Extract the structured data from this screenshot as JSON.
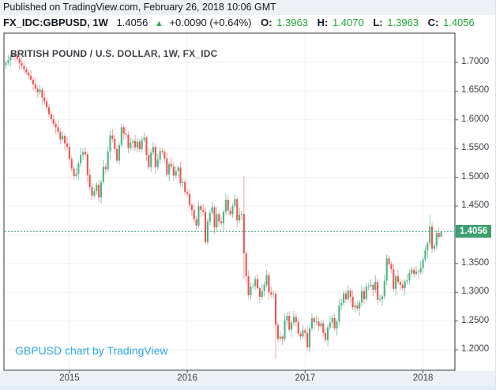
{
  "header": {
    "published_line": "Published on TradingView.com, February 26, 2018 10:06 GMT",
    "symbol_line": {
      "symbol": "FX_IDC:GBPUSD, 1W",
      "last_price": "1.4056",
      "arrow": "▲",
      "change": "+0.0090 (+0.64%)",
      "open_label": "O:",
      "open_value": "1.3963",
      "high_label": "H:",
      "high_value": "1.4070",
      "low_label": "L:",
      "low_value": "1.3963",
      "close_label": "C:",
      "close_value": "1.4056"
    }
  },
  "chart_data": {
    "type": "candlestick",
    "title": "BRITISH POUND / U.S. DOLLAR, 1W, FX_IDC",
    "watermark": "GBPUSD chart by TradingView",
    "symbol": "GBPUSD",
    "timeframe": "1W",
    "grid": true,
    "current_price": 1.4056,
    "current_price_label": "1.4056",
    "ylim": [
      1.16428,
      1.75082
    ],
    "y_ticks": [
      {
        "value": 1.7,
        "label": "1.7000"
      },
      {
        "value": 1.65,
        "label": "1.6500"
      },
      {
        "value": 1.6,
        "label": "1.6000"
      },
      {
        "value": 1.55,
        "label": "1.5500"
      },
      {
        "value": 1.5,
        "label": "1.5000"
      },
      {
        "value": 1.45,
        "label": "1.4500"
      },
      {
        "value": 1.4,
        "label": "1.4000"
      },
      {
        "value": 1.35,
        "label": "1.3500"
      },
      {
        "value": 1.3,
        "label": "1.3000"
      },
      {
        "value": 1.25,
        "label": "1.2500"
      },
      {
        "value": 1.2,
        "label": "1.2000"
      }
    ],
    "x_ticks": [
      {
        "label": "2015",
        "week_index": 28
      },
      {
        "label": "2016",
        "week_index": 80
      },
      {
        "label": "2017",
        "week_index": 132
      },
      {
        "label": "2018",
        "week_index": 184
      }
    ],
    "first_open": 1.695,
    "weekly_closes": [
      1.699,
      1.7035,
      1.71,
      1.7145,
      1.711,
      1.706,
      1.6985,
      1.694,
      1.688,
      1.6825,
      1.677,
      1.67,
      1.662,
      1.654,
      1.648,
      1.6525,
      1.639,
      1.632,
      1.622,
      1.61,
      1.601,
      1.593,
      1.587,
      1.579,
      1.566,
      1.572,
      1.559,
      1.553,
      1.532,
      1.515,
      1.502,
      1.506,
      1.524,
      1.539,
      1.544,
      1.54,
      1.504,
      1.483,
      1.468,
      1.476,
      1.487,
      1.465,
      1.492,
      1.518,
      1.514,
      1.545,
      1.573,
      1.567,
      1.549,
      1.529,
      1.556,
      1.587,
      1.576,
      1.574,
      1.551,
      1.56,
      1.563,
      1.552,
      1.562,
      1.549,
      1.565,
      1.569,
      1.539,
      1.518,
      1.543,
      1.553,
      1.518,
      1.531,
      1.546,
      1.544,
      1.533,
      1.505,
      1.523,
      1.519,
      1.503,
      1.511,
      1.517,
      1.49,
      1.492,
      1.474,
      1.471,
      1.452,
      1.443,
      1.427,
      1.416,
      1.45,
      1.443,
      1.44,
      1.387,
      1.423,
      1.438,
      1.448,
      1.413,
      1.436,
      1.423,
      1.42,
      1.44,
      1.461,
      1.442,
      1.436,
      1.45,
      1.462,
      1.425,
      1.435,
      1.436,
      1.3679,
      1.328,
      1.295,
      1.31,
      1.311,
      1.323,
      1.307,
      1.292,
      1.302,
      1.313,
      1.33,
      1.3,
      1.296,
      1.297,
      1.2434,
      1.219,
      1.223,
      1.219,
      1.251,
      1.259,
      1.235,
      1.247,
      1.257,
      1.248,
      1.228,
      1.223,
      1.234,
      1.229,
      1.204,
      1.237,
      1.255,
      1.248,
      1.249,
      1.241,
      1.246,
      1.229,
      1.217,
      1.239,
      1.247,
      1.255,
      1.237,
      1.249,
      1.277,
      1.281,
      1.298,
      1.288,
      1.303,
      1.292,
      1.274,
      1.277,
      1.272,
      1.282,
      1.302,
      1.288,
      1.31,
      1.311,
      1.313,
      1.304,
      1.318,
      1.287,
      1.288,
      1.293,
      1.32,
      1.359,
      1.349,
      1.34,
      1.306,
      1.328,
      1.318,
      1.313,
      1.307,
      1.319,
      1.321,
      1.333,
      1.339,
      1.332,
      1.336,
      1.335,
      1.342,
      1.357,
      1.373,
      1.385,
      1.4145,
      1.376,
      1.381,
      1.403,
      1.3963,
      1.4056
    ],
    "wick_high_cycle": [
      0.005,
      0.0095,
      0.0038,
      0.012,
      0.006,
      0.0085,
      0.0042,
      0.0105,
      0.007,
      0.0055
    ],
    "wick_low_cycle": [
      0.0065,
      0.004,
      0.011,
      0.0052,
      0.009,
      0.0045,
      0.0125,
      0.0058,
      0.008,
      0.0048
    ],
    "ohlc_overrides": {
      "3": {
        "h": 1.7192
      },
      "41": {
        "l": 1.4566
      },
      "46": {
        "h": 1.5815
      },
      "51": {
        "h": 1.593
      },
      "84": {
        "l": 1.408
      },
      "88": {
        "l": 1.3836
      },
      "105": {
        "h": 1.5018,
        "l": 1.323
      },
      "119": {
        "l": 1.1841
      },
      "133": {
        "l": 1.1986
      },
      "168": {
        "h": 1.3657
      },
      "187": {
        "h": 1.4345
      },
      "192": {
        "o": 1.3963,
        "h": 1.407,
        "l": 1.3963,
        "c": 1.4056
      }
    },
    "colors": {
      "up_body": "#4db483",
      "down_body": "#ef5350",
      "up_wick": "#7cc4a4",
      "down_wick": "#f29b99",
      "price_line": "#3ba06e",
      "price_label_bg": "#3ba06e",
      "grid": "#edf1f4",
      "border": "#30343a",
      "tick": "#565a60",
      "axis_text": "#3c4046",
      "value_green": "#21a637",
      "arrow_green": "#2da84f",
      "watermark_blue": "#2fa7df"
    }
  }
}
